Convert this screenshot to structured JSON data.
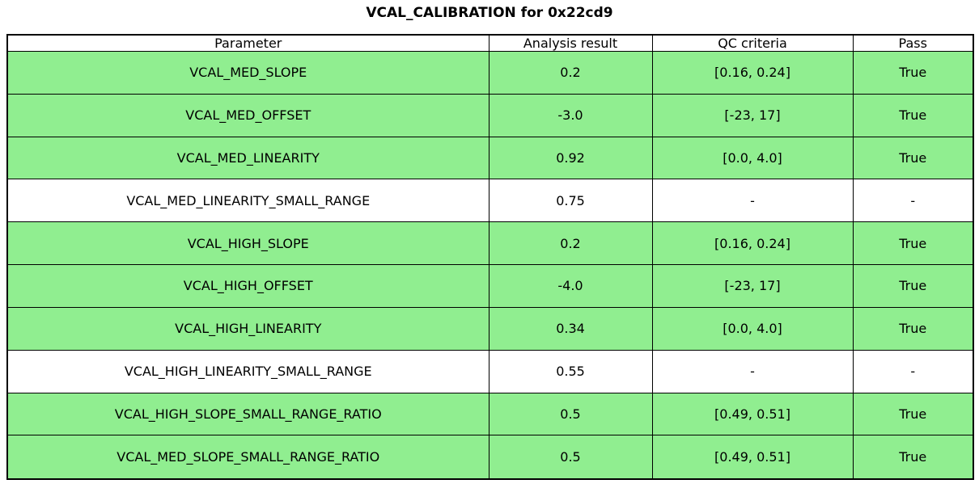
{
  "chart_data": {
    "type": "table",
    "title": "VCAL_CALIBRATION for 0x22cd9",
    "columns": [
      "Parameter",
      "Analysis result",
      "QC criteria",
      "Pass"
    ],
    "rows": [
      {
        "parameter": "VCAL_MED_SLOPE",
        "analysis_result": "0.2",
        "qc_criteria": "[0.16, 0.24]",
        "pass": "True",
        "row_color": "#90ee90"
      },
      {
        "parameter": "VCAL_MED_OFFSET",
        "analysis_result": "-3.0",
        "qc_criteria": "[-23, 17]",
        "pass": "True",
        "row_color": "#90ee90"
      },
      {
        "parameter": "VCAL_MED_LINEARITY",
        "analysis_result": "0.92",
        "qc_criteria": "[0.0, 4.0]",
        "pass": "True",
        "row_color": "#90ee90"
      },
      {
        "parameter": "VCAL_MED_LINEARITY_SMALL_RANGE",
        "analysis_result": "0.75",
        "qc_criteria": "-",
        "pass": "-",
        "row_color": "#ffffff"
      },
      {
        "parameter": "VCAL_HIGH_SLOPE",
        "analysis_result": "0.2",
        "qc_criteria": "[0.16, 0.24]",
        "pass": "True",
        "row_color": "#90ee90"
      },
      {
        "parameter": "VCAL_HIGH_OFFSET",
        "analysis_result": "-4.0",
        "qc_criteria": "[-23, 17]",
        "pass": "True",
        "row_color": "#90ee90"
      },
      {
        "parameter": "VCAL_HIGH_LINEARITY",
        "analysis_result": "0.34",
        "qc_criteria": "[0.0, 4.0]",
        "pass": "True",
        "row_color": "#90ee90"
      },
      {
        "parameter": "VCAL_HIGH_LINEARITY_SMALL_RANGE",
        "analysis_result": "0.55",
        "qc_criteria": "-",
        "pass": "-",
        "row_color": "#ffffff"
      },
      {
        "parameter": "VCAL_HIGH_SLOPE_SMALL_RANGE_RATIO",
        "analysis_result": "0.5",
        "qc_criteria": "[0.49, 0.51]",
        "pass": "True",
        "row_color": "#90ee90"
      },
      {
        "parameter": "VCAL_MED_SLOPE_SMALL_RANGE_RATIO",
        "analysis_result": "0.5",
        "qc_criteria": "[0.49, 0.51]",
        "pass": "True",
        "row_color": "#90ee90"
      }
    ],
    "layout": {
      "header_background": "#ffffff",
      "pass_row_color": "#90ee90",
      "no_qc_row_color": "#ffffff",
      "border_color": "#000000",
      "grid": "on"
    }
  }
}
